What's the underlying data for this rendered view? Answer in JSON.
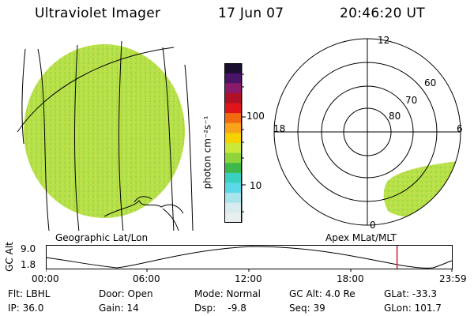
{
  "header": {
    "title": "Ultraviolet Imager",
    "date": "17 Jun 07",
    "time": "20:46:20 UT"
  },
  "geo_panel": {
    "label": "Geographic Lat/Lon"
  },
  "colorbar": {
    "unit_label": "photon cm⁻²s⁻¹",
    "ticks": [
      "100",
      "10"
    ],
    "colors": [
      "#1a0f2e",
      "#4a1468",
      "#8a1a6a",
      "#b01025",
      "#e0151a",
      "#f06a10",
      "#f7a41a",
      "#f5d200",
      "#c8e83a",
      "#8fd43a",
      "#3fb84a",
      "#3ad0c0",
      "#5ad8e8",
      "#a8e4ec",
      "#d8ecef",
      "#e8eeee"
    ]
  },
  "polar_panel": {
    "label": "Apex  MLat/MLT",
    "mlt_labels": {
      "top": "12",
      "left": "18",
      "right": "6",
      "bottom": "0"
    },
    "lat_labels": [
      "60",
      "70",
      "80"
    ]
  },
  "timeline": {
    "y_label": "GC Alt",
    "y_ticks": [
      "9.0",
      "1.8"
    ],
    "x_ticks": [
      "00:00",
      "06:00",
      "12:00",
      "18:00",
      "23:59"
    ],
    "current_fraction": 0.865,
    "marker_color": "#d0202a"
  },
  "info_rows": [
    [
      "Flt: LBHL",
      "Door: Open",
      "Mode: Normal",
      "GC Alt: 4.0 Re",
      "GLat: -33.3"
    ],
    [
      "IP: 36.0",
      "Gain: 14",
      "Dsp:    -9.8",
      "Seq: 39",
      "GLon: 101.7"
    ]
  ],
  "colors": {
    "aurora_fill": "#b8e04a",
    "aurora_dark": "#8fcf3a"
  }
}
